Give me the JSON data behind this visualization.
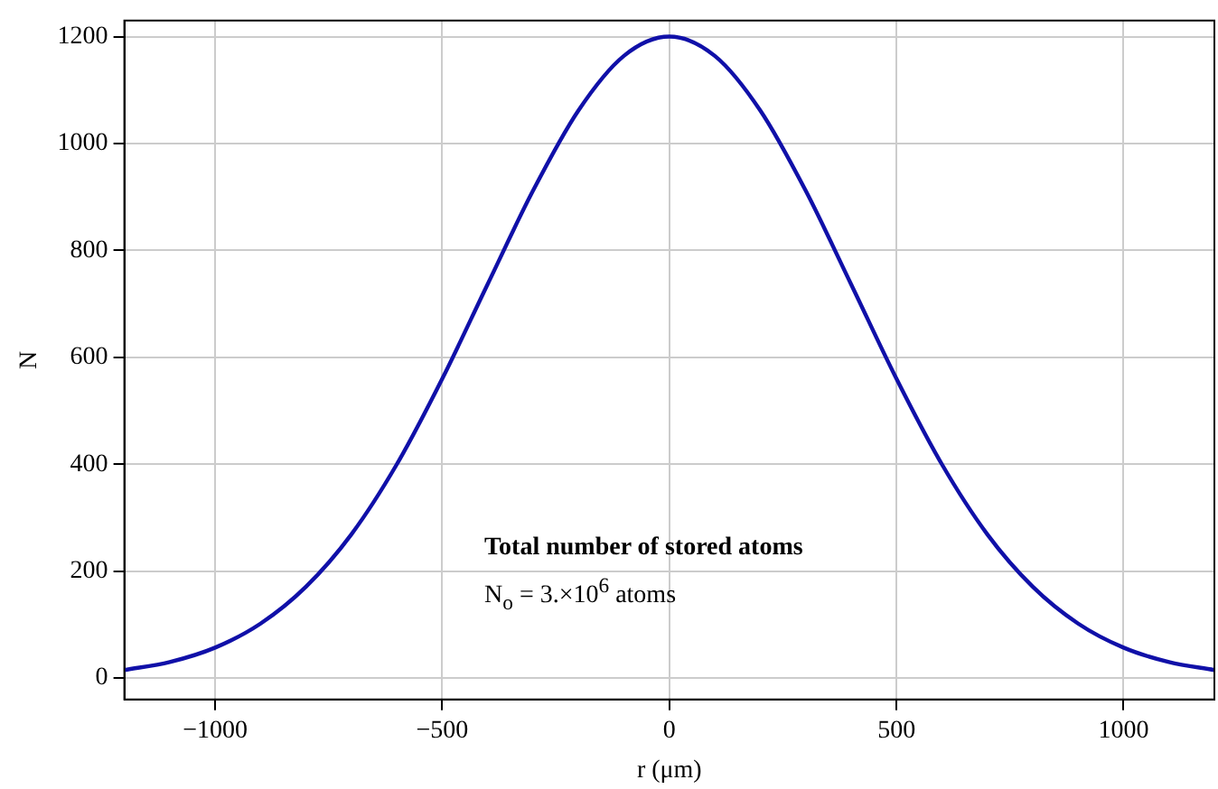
{
  "chart_data": {
    "type": "line",
    "xlabel": "r (μm)",
    "ylabel": "N",
    "x": [
      -1200,
      -1100,
      -1000,
      -900,
      -800,
      -700,
      -600,
      -500,
      -400,
      -300,
      -200,
      -100,
      0,
      100,
      200,
      300,
      400,
      500,
      600,
      700,
      800,
      900,
      1000,
      1100,
      1200
    ],
    "series": [
      {
        "color": "#1010a8",
        "values": [
          15,
          30,
          57,
          102,
          171,
          269,
          400,
          560,
          737,
          912,
          1062,
          1164,
          1200,
          1164,
          1062,
          912,
          737,
          560,
          400,
          269,
          171,
          102,
          57,
          30,
          15
        ]
      }
    ],
    "xlim": [
      -1200,
      1200
    ],
    "ylim": [
      -40,
      1230
    ],
    "xticks": [
      -1000,
      -500,
      0,
      500,
      1000
    ],
    "yticks": [
      0,
      200,
      400,
      600,
      800,
      1000,
      1200
    ],
    "grid": true,
    "legend": false,
    "marker": "none",
    "line_style": "solid",
    "annotations": [
      "Total number of stored atoms",
      "N$_{o}$ = 3.×10$^{6}$ atoms"
    ]
  }
}
